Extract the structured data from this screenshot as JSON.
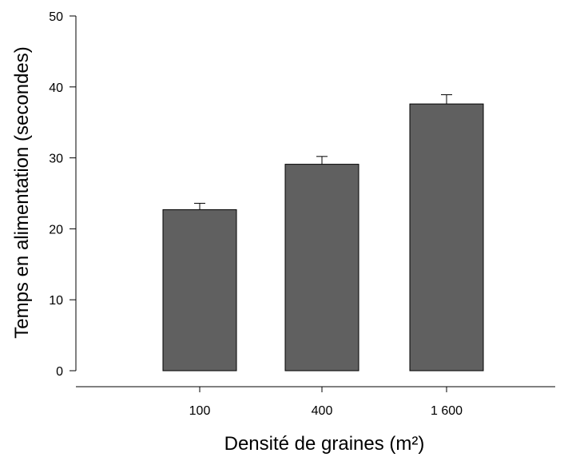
{
  "chart_data": {
    "type": "bar",
    "title": "",
    "xlabel": "Densité de graines (m²)",
    "ylabel": "Temps en alimentation (secondes)",
    "categories": [
      "100",
      "400",
      "1 600"
    ],
    "values": [
      22.7,
      29.1,
      37.6
    ],
    "error_plus": [
      0.9,
      1.1,
      1.3
    ],
    "ylim": [
      0,
      50
    ],
    "yticks": [
      0,
      10,
      20,
      30,
      40,
      50
    ],
    "bar_color": "#606060",
    "grid": false,
    "legend": "none"
  }
}
